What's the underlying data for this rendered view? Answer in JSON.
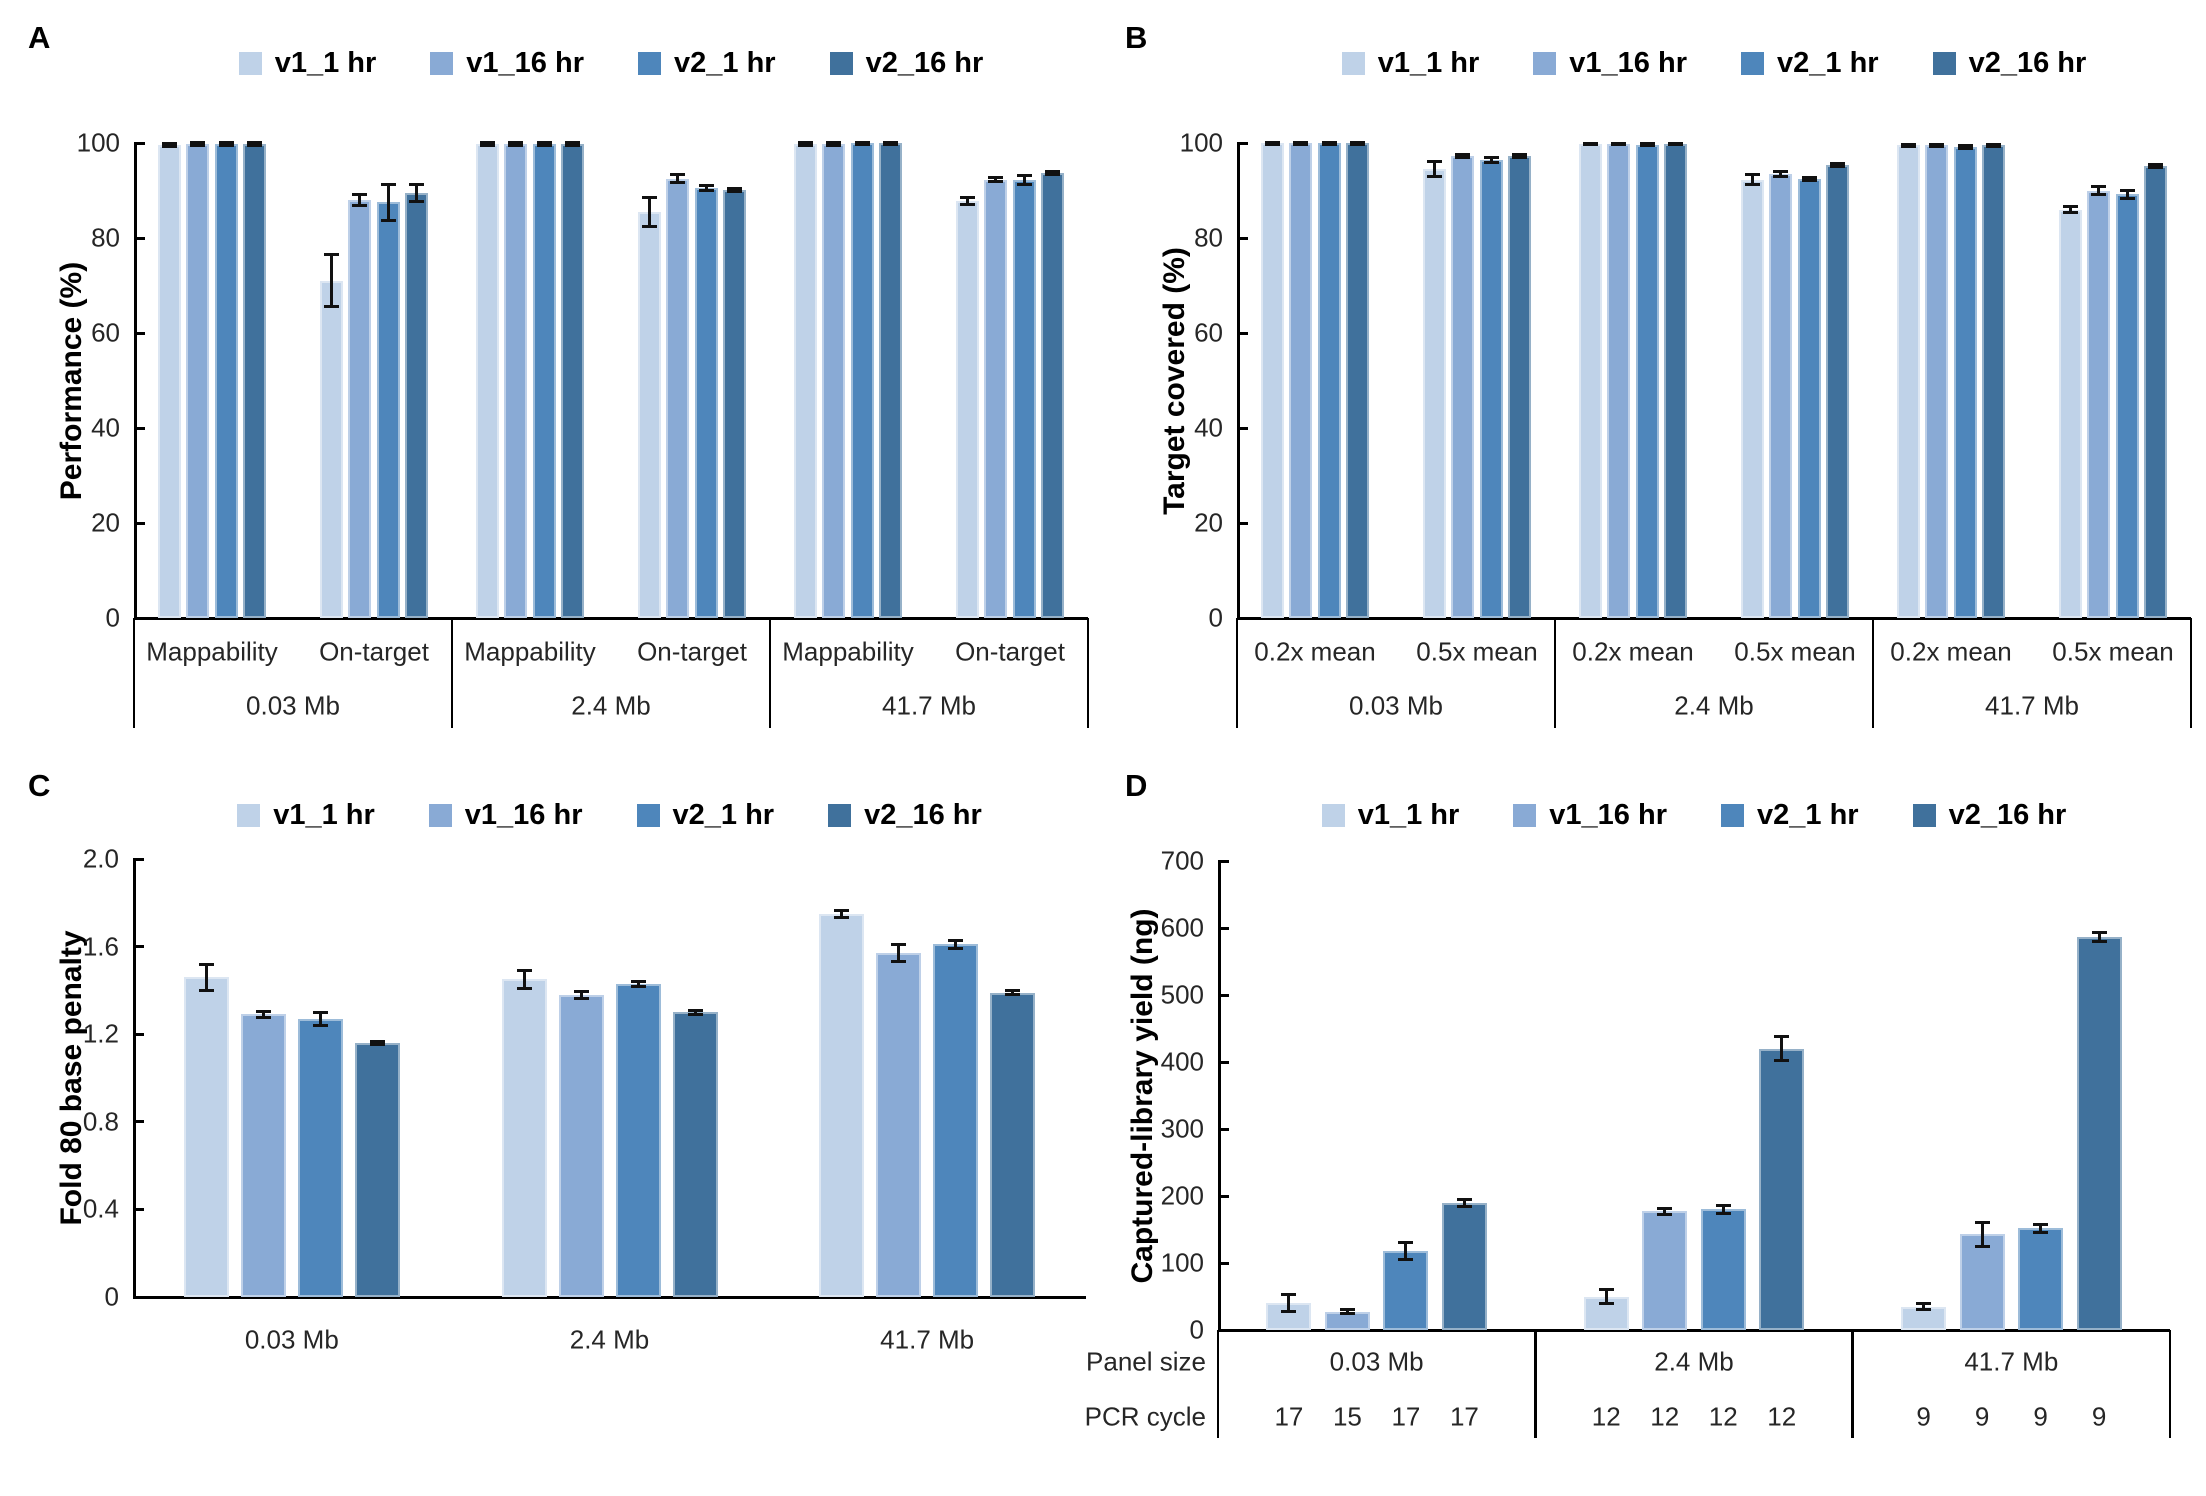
{
  "figure": {
    "background": "#ffffff",
    "panel_letters": [
      "A",
      "B",
      "C",
      "D"
    ],
    "legend": {
      "labels": [
        "v1_1 hr",
        "v1_16 hr",
        "v2_1 hr",
        "v2_16 hr"
      ],
      "colors": [
        "#bfd2e8",
        "#89aad5",
        "#4e86bb",
        "#40719c"
      ]
    }
  },
  "chart_data": [
    {
      "panel": "A",
      "type": "bar",
      "title": "",
      "ylabel": "Performance (%)",
      "ylim": [
        0,
        100
      ],
      "yticks": [
        "0",
        "20",
        "40",
        "60",
        "80",
        "100"
      ],
      "grid": false,
      "legend_position": "top",
      "legend": [
        "v1_1 hr",
        "v1_16 hr",
        "v2_1 hr",
        "v2_16 hr"
      ],
      "series_colors": [
        "#bfd2e8",
        "#89aad5",
        "#4e86bb",
        "#40719c"
      ],
      "groups": [
        {
          "group": "0.03 Mb",
          "clusters": [
            {
              "label": "Mappability",
              "values": [
                99.6,
                99.8,
                99.8,
                99.8
              ],
              "errors": [
                0.4,
                0.3,
                0.3,
                0.3
              ]
            },
            {
              "label": "On-target",
              "values": [
                71.0,
                88.0,
                87.5,
                89.5
              ],
              "errors": [
                5.5,
                1.2,
                3.8,
                1.8
              ]
            }
          ]
        },
        {
          "group": "2.4 Mb",
          "clusters": [
            {
              "label": "Mappability",
              "values": [
                99.8,
                99.8,
                99.8,
                99.8
              ],
              "errors": [
                0.3,
                0.3,
                0.3,
                0.3
              ]
            },
            {
              "label": "On-target",
              "values": [
                85.5,
                92.5,
                90.5,
                90.1
              ],
              "errors": [
                3.0,
                0.8,
                0.5,
                0.4
              ]
            }
          ]
        },
        {
          "group": "41.7 Mb",
          "clusters": [
            {
              "label": "Mappability",
              "values": [
                99.8,
                99.8,
                99.9,
                99.9
              ],
              "errors": [
                0.3,
                0.3,
                0.2,
                0.2
              ]
            },
            {
              "label": "On-target",
              "values": [
                87.8,
                92.3,
                92.2,
                93.6
              ],
              "errors": [
                0.8,
                0.5,
                0.9,
                0.3
              ]
            }
          ]
        }
      ]
    },
    {
      "panel": "B",
      "type": "bar",
      "title": "",
      "ylabel": "Target covered (%)",
      "ylim": [
        0,
        100
      ],
      "yticks": [
        "0",
        "20",
        "40",
        "60",
        "80",
        "100"
      ],
      "grid": false,
      "legend_position": "top",
      "legend": [
        "v1_1 hr",
        "v1_16 hr",
        "v2_1 hr",
        "v2_16 hr"
      ],
      "series_colors": [
        "#bfd2e8",
        "#89aad5",
        "#4e86bb",
        "#40719c"
      ],
      "groups": [
        {
          "group": "0.03 Mb",
          "clusters": [
            {
              "label": "0.2x mean",
              "values": [
                99.9,
                99.9,
                99.9,
                99.9
              ],
              "errors": [
                0.15,
                0.15,
                0.15,
                0.15
              ]
            },
            {
              "label": "0.5x mean",
              "values": [
                94.5,
                97.3,
                96.4,
                97.3
              ],
              "errors": [
                1.6,
                0.3,
                0.6,
                0.3
              ]
            }
          ]
        },
        {
          "group": "2.4 Mb",
          "clusters": [
            {
              "label": "0.2x mean",
              "values": [
                99.8,
                99.8,
                99.6,
                99.8
              ],
              "errors": [
                0.15,
                0.15,
                0.2,
                0.15
              ]
            },
            {
              "label": "0.5x mean",
              "values": [
                92.3,
                93.4,
                92.4,
                95.4
              ],
              "errors": [
                1.1,
                0.5,
                0.3,
                0.3
              ]
            }
          ]
        },
        {
          "group": "41.7 Mb",
          "clusters": [
            {
              "label": "0.2x mean",
              "values": [
                99.5,
                99.5,
                99.2,
                99.5
              ],
              "errors": [
                0.2,
                0.2,
                0.3,
                0.2
              ]
            },
            {
              "label": "0.5x mean",
              "values": [
                86.0,
                90.0,
                89.2,
                95.1
              ],
              "errors": [
                0.6,
                0.8,
                0.8,
                0.3
              ]
            }
          ]
        }
      ]
    },
    {
      "panel": "C",
      "type": "bar",
      "title": "",
      "ylabel": "Fold 80 base penalty",
      "ylim": [
        0,
        2.0
      ],
      "yticks": [
        "0",
        "0.4",
        "0.8",
        "1.2",
        "1.6",
        "2.0"
      ],
      "grid": false,
      "legend_position": "top",
      "legend": [
        "v1_1 hr",
        "v1_16 hr",
        "v2_1 hr",
        "v2_16 hr"
      ],
      "series_colors": [
        "#bfd2e8",
        "#89aad5",
        "#4e86bb",
        "#40719c"
      ],
      "groups": [
        {
          "group": "0.03 Mb",
          "clusters": [
            {
              "label": "",
              "values": [
                1.46,
                1.29,
                1.27,
                1.16
              ],
              "errors": [
                0.06,
                0.015,
                0.03,
                0.008
              ]
            }
          ]
        },
        {
          "group": "2.4 Mb",
          "clusters": [
            {
              "label": "",
              "values": [
                1.45,
                1.38,
                1.43,
                1.3
              ],
              "errors": [
                0.04,
                0.015,
                0.01,
                0.008
              ]
            }
          ]
        },
        {
          "group": "41.7 Mb",
          "clusters": [
            {
              "label": "",
              "values": [
                1.75,
                1.57,
                1.61,
                1.39
              ],
              "errors": [
                0.015,
                0.04,
                0.02,
                0.008
              ]
            }
          ]
        }
      ]
    },
    {
      "panel": "D",
      "type": "bar",
      "title": "",
      "ylabel": "Captured-library yield (ng)",
      "ylim": [
        0,
        700
      ],
      "yticks": [
        "0",
        "100",
        "200",
        "300",
        "400",
        "500",
        "600",
        "700"
      ],
      "grid": false,
      "legend_position": "top",
      "legend": [
        "v1_1 hr",
        "v1_16 hr",
        "v2_1 hr",
        "v2_16 hr"
      ],
      "series_colors": [
        "#bfd2e8",
        "#89aad5",
        "#4e86bb",
        "#40719c"
      ],
      "row_labels": [
        "Panel size",
        "PCR cycle"
      ],
      "groups": [
        {
          "group": "0.03 Mb",
          "pcr_cycles": [
            "17",
            "15",
            "17",
            "17"
          ],
          "clusters": [
            {
              "label": "",
              "values": [
                40,
                27,
                118,
                190
              ],
              "errors": [
                13,
                3,
                13,
                5
              ]
            }
          ]
        },
        {
          "group": "2.4 Mb",
          "pcr_cycles": [
            "12",
            "12",
            "12",
            "12"
          ],
          "clusters": [
            {
              "label": "",
              "values": [
                50,
                177,
                180,
                420
              ],
              "errors": [
                10,
                4,
                6,
                18
              ]
            }
          ]
        },
        {
          "group": "41.7 Mb",
          "pcr_cycles": [
            "9",
            "9",
            "9",
            "9"
          ],
          "clusters": [
            {
              "label": "",
              "values": [
                35,
                143,
                152,
                587
              ],
              "errors": [
                5,
                18,
                6,
                7
              ]
            }
          ]
        }
      ]
    }
  ]
}
